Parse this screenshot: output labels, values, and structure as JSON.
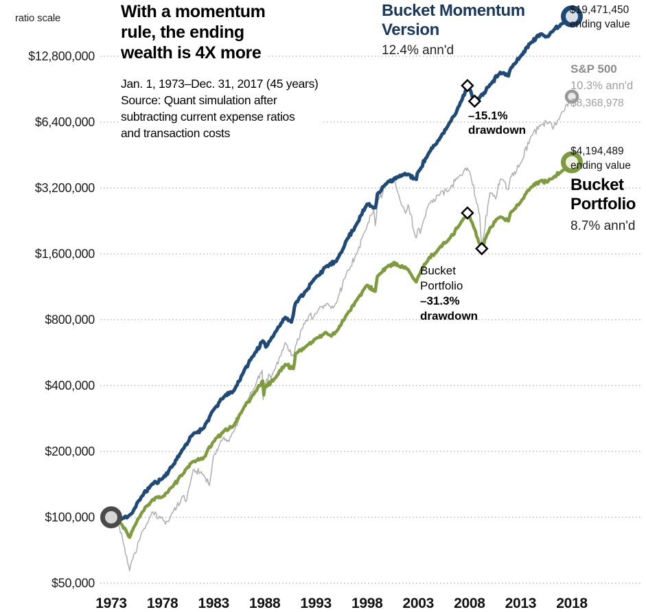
{
  "header": {
    "ratio_scale_label": "ratio scale",
    "title_lines": [
      "With a momentum",
      "rule, the ending",
      "wealth is 4X more"
    ],
    "subtitle_lines": [
      "Jan. 1, 1973–Dec. 31, 2017 (45 years)",
      "Source: Quant simulation after",
      "subtracting current expense ratios",
      "and transaction costs"
    ]
  },
  "legends": {
    "momentum": {
      "title_lines": [
        "Bucket Momentum",
        "Version"
      ],
      "annualized": "12.4% ann'd",
      "ending_value": "$19,471,450",
      "ending_label": "ending value"
    },
    "sp500": {
      "title": "S&P 500",
      "annualized": "10.3% ann'd",
      "ending_value": "$8,368,978"
    },
    "bucket": {
      "ending_value": "$4,194,489",
      "ending_label": "ending value",
      "title_lines": [
        "Bucket",
        "Portfolio"
      ],
      "annualized": "8.7% ann'd"
    }
  },
  "annotations": {
    "momentum_drawdown": {
      "lines": [
        "–15.1%",
        "drawdown"
      ]
    },
    "bucket_drawdown": {
      "plain_lines": [
        "Bucket",
        "Portfolio"
      ],
      "bold_lines": [
        "–31.3%",
        "drawdown"
      ]
    }
  },
  "colors": {
    "momentum_line": "#1f4a78",
    "momentum_heading": "#17375c",
    "sp500_line": "#b1b1b1",
    "bucket_line": "#7e9b3e",
    "gridline": "#9a9a9a"
  },
  "chart_data": {
    "type": "line",
    "title": "With a momentum rule, the ending wealth is 4X more",
    "period": "Jan. 1, 1973–Dec. 31, 2017 (45 years)",
    "source": "Quant simulation after subtracting current expense ratios and transaction costs",
    "x_axis": {
      "range": [
        1973,
        2018
      ],
      "ticks": [
        1973,
        1978,
        1983,
        1988,
        1993,
        1998,
        2003,
        2008,
        2013,
        2018
      ]
    },
    "y_axis": {
      "scale": "log",
      "label": "ratio scale",
      "ticks": [
        50000,
        100000,
        200000,
        400000,
        800000,
        1600000,
        3200000,
        6400000,
        12800000
      ],
      "tick_labels": [
        "$50,000",
        "$100,000",
        "$200,000",
        "$400,000",
        "$800,000",
        "$1,600,000",
        "$3,200,000",
        "$6,400,000",
        "$12,800,000"
      ]
    },
    "series": [
      {
        "name": "Bucket Momentum Version",
        "annualized_return": "12.4%",
        "ending_value": 19471450,
        "max_drawdown": "-15.1%",
        "color": "#1f4a78",
        "points": [
          [
            1973.0,
            100000
          ],
          [
            1974.0,
            98000
          ],
          [
            1975.0,
            104000
          ],
          [
            1976.0,
            125000
          ],
          [
            1977.0,
            142000
          ],
          [
            1978.0,
            150000
          ],
          [
            1979.0,
            172000
          ],
          [
            1980.0,
            205000
          ],
          [
            1981.0,
            240000
          ],
          [
            1982.0,
            255000
          ],
          [
            1983.0,
            310000
          ],
          [
            1984.0,
            355000
          ],
          [
            1985.0,
            380000
          ],
          [
            1986.0,
            470000
          ],
          [
            1987.0,
            560000
          ],
          [
            1987.8,
            640000
          ],
          [
            1988.1,
            600000
          ],
          [
            1989.0,
            700000
          ],
          [
            1990.0,
            820000
          ],
          [
            1990.6,
            780000
          ],
          [
            1991.0,
            950000
          ],
          [
            1992.0,
            1080000
          ],
          [
            1993.0,
            1250000
          ],
          [
            1994.0,
            1400000
          ],
          [
            1995.0,
            1480000
          ],
          [
            1996.0,
            1850000
          ],
          [
            1997.0,
            2200000
          ],
          [
            1998.0,
            2700000
          ],
          [
            1998.8,
            2600000
          ],
          [
            1999.0,
            3000000
          ],
          [
            2000.0,
            3400000
          ],
          [
            2001.0,
            3600000
          ],
          [
            2002.0,
            3700000
          ],
          [
            2002.8,
            3500000
          ],
          [
            2003.0,
            3800000
          ],
          [
            2004.0,
            4600000
          ],
          [
            2005.0,
            5300000
          ],
          [
            2006.0,
            6300000
          ],
          [
            2007.0,
            7600000
          ],
          [
            2007.8,
            9400000
          ],
          [
            2008.5,
            7980000
          ],
          [
            2009.0,
            8300000
          ],
          [
            2010.0,
            9500000
          ],
          [
            2011.0,
            10800000
          ],
          [
            2011.8,
            10400000
          ],
          [
            2012.0,
            11200000
          ],
          [
            2013.0,
            12800000
          ],
          [
            2014.0,
            14800000
          ],
          [
            2015.0,
            16200000
          ],
          [
            2015.6,
            15800000
          ],
          [
            2016.0,
            16500000
          ],
          [
            2017.0,
            18000000
          ],
          [
            2018.0,
            19471450
          ]
        ]
      },
      {
        "name": "S&P 500",
        "annualized_return": "10.3%",
        "ending_value": 8368978,
        "color": "#b1b1b1",
        "points": [
          [
            1973.0,
            100000
          ],
          [
            1973.5,
            95000
          ],
          [
            1974.0,
            85000
          ],
          [
            1974.8,
            57000
          ],
          [
            1975.0,
            63000
          ],
          [
            1976.0,
            86000
          ],
          [
            1977.0,
            106000
          ],
          [
            1978.0,
            99000
          ],
          [
            1978.3,
            93000
          ],
          [
            1979.0,
            105000
          ],
          [
            1980.0,
            125000
          ],
          [
            1980.3,
            118000
          ],
          [
            1981.0,
            165000
          ],
          [
            1982.0,
            157000
          ],
          [
            1982.6,
            140000
          ],
          [
            1983.0,
            191000
          ],
          [
            1984.0,
            233000
          ],
          [
            1984.5,
            222000
          ],
          [
            1985.0,
            248000
          ],
          [
            1986.0,
            328000
          ],
          [
            1987.0,
            389000
          ],
          [
            1987.75,
            470000
          ],
          [
            1987.85,
            345000
          ],
          [
            1988.0,
            409000
          ],
          [
            1989.0,
            478000
          ],
          [
            1990.0,
            628000
          ],
          [
            1990.8,
            545000
          ],
          [
            1991.0,
            609000
          ],
          [
            1992.0,
            795000
          ],
          [
            1993.0,
            855000
          ],
          [
            1994.0,
            941000
          ],
          [
            1994.5,
            900000
          ],
          [
            1995.0,
            954000
          ],
          [
            1996.0,
            1312000
          ],
          [
            1997.0,
            1614000
          ],
          [
            1998.0,
            2153000
          ],
          [
            1998.65,
            2550000
          ],
          [
            1998.8,
            2150000
          ],
          [
            1999.0,
            2768000
          ],
          [
            2000.0,
            3350000
          ],
          [
            2000.65,
            3550000
          ],
          [
            2001.0,
            3045000
          ],
          [
            2001.75,
            2450000
          ],
          [
            2002.0,
            2683000
          ],
          [
            2002.75,
            1900000
          ],
          [
            2003.0,
            2090000
          ],
          [
            2003.2,
            1980000
          ],
          [
            2004.0,
            2690000
          ],
          [
            2005.0,
            2983000
          ],
          [
            2006.0,
            3129000
          ],
          [
            2007.0,
            3624000
          ],
          [
            2007.8,
            3950000
          ],
          [
            2008.0,
            3823000
          ],
          [
            2009.0,
            2408000
          ],
          [
            2009.2,
            1730000
          ],
          [
            2010.0,
            3046000
          ],
          [
            2010.55,
            2850000
          ],
          [
            2011.0,
            3506000
          ],
          [
            2011.8,
            3150000
          ],
          [
            2012.0,
            3580000
          ],
          [
            2013.0,
            4153000
          ],
          [
            2014.0,
            5498000
          ],
          [
            2015.0,
            6251000
          ],
          [
            2016.0,
            6339000
          ],
          [
            2016.15,
            5950000
          ],
          [
            2017.0,
            7099000
          ],
          [
            2018.0,
            8368978
          ]
        ]
      },
      {
        "name": "Bucket Portfolio",
        "annualized_return": "8.7%",
        "ending_value": 4194489,
        "max_drawdown": "-31.3%",
        "color": "#7e9b3e",
        "points": [
          [
            1973.0,
            100000
          ],
          [
            1974.0,
            93000
          ],
          [
            1974.8,
            81000
          ],
          [
            1975.0,
            86000
          ],
          [
            1976.0,
            105000
          ],
          [
            1977.0,
            120000
          ],
          [
            1978.0,
            124000
          ],
          [
            1979.0,
            138000
          ],
          [
            1980.0,
            158000
          ],
          [
            1981.0,
            180000
          ],
          [
            1982.0,
            186000
          ],
          [
            1983.0,
            222000
          ],
          [
            1984.0,
            248000
          ],
          [
            1985.0,
            263000
          ],
          [
            1986.0,
            320000
          ],
          [
            1987.0,
            370000
          ],
          [
            1987.8,
            420000
          ],
          [
            1987.9,
            362000
          ],
          [
            1988.0,
            392000
          ],
          [
            1989.0,
            432000
          ],
          [
            1990.0,
            500000
          ],
          [
            1990.8,
            478000
          ],
          [
            1991.0,
            560000
          ],
          [
            1992.0,
            602000
          ],
          [
            1993.0,
            655000
          ],
          [
            1994.0,
            700000
          ],
          [
            1994.5,
            672000
          ],
          [
            1995.0,
            706000
          ],
          [
            1996.0,
            845000
          ],
          [
            1997.0,
            985000
          ],
          [
            1998.0,
            1150000
          ],
          [
            1998.8,
            1080000
          ],
          [
            1999.0,
            1260000
          ],
          [
            2000.0,
            1400000
          ],
          [
            2000.7,
            1460000
          ],
          [
            2001.0,
            1410000
          ],
          [
            2002.0,
            1360000
          ],
          [
            2002.8,
            1190000
          ],
          [
            2003.0,
            1260000
          ],
          [
            2004.0,
            1520000
          ],
          [
            2005.0,
            1690000
          ],
          [
            2006.0,
            1870000
          ],
          [
            2007.0,
            2160000
          ],
          [
            2007.8,
            2460000
          ],
          [
            2008.2,
            2250000
          ],
          [
            2009.2,
            1690000
          ],
          [
            2010.0,
            2100000
          ],
          [
            2011.0,
            2360000
          ],
          [
            2011.8,
            2260000
          ],
          [
            2012.0,
            2460000
          ],
          [
            2013.0,
            2760000
          ],
          [
            2014.0,
            3220000
          ],
          [
            2015.0,
            3460000
          ],
          [
            2015.6,
            3400000
          ],
          [
            2016.0,
            3520000
          ],
          [
            2017.0,
            3820000
          ],
          [
            2018.0,
            4194489
          ]
        ]
      }
    ],
    "markers": {
      "start_circle": {
        "x": 1973,
        "value": 100000
      },
      "end_circles": [
        {
          "series": "Bucket Momentum Version",
          "x": 2018,
          "value": 19471450
        },
        {
          "series": "S&P 500",
          "x": 2018,
          "value": 8368978
        },
        {
          "series": "Bucket Portfolio",
          "x": 2018,
          "value": 4194489
        }
      ],
      "drawdown_diamonds": [
        {
          "series": "Bucket Momentum Version",
          "x": 2007.8,
          "value": 9400000
        },
        {
          "series": "Bucket Momentum Version",
          "x": 2008.5,
          "value": 7980000
        },
        {
          "series": "Bucket Portfolio",
          "x": 2007.8,
          "value": 2460000
        },
        {
          "series": "Bucket Portfolio",
          "x": 2009.2,
          "value": 1690000
        }
      ]
    },
    "legend_position": "inline-labels",
    "grid": "horizontal-dotted"
  }
}
